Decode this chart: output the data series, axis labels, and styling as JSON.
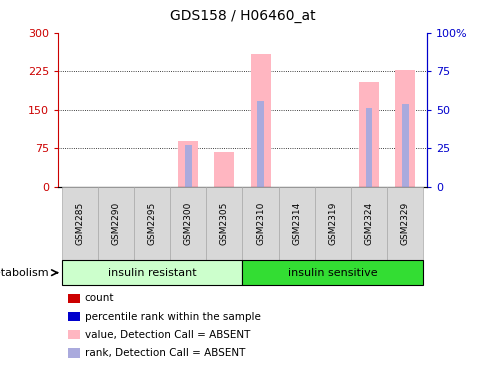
{
  "title": "GDS158 / H06460_at",
  "samples": [
    "GSM2285",
    "GSM2290",
    "GSM2295",
    "GSM2300",
    "GSM2305",
    "GSM2310",
    "GSM2314",
    "GSM2319",
    "GSM2324",
    "GSM2329"
  ],
  "pink_values": [
    0,
    0,
    0,
    90,
    68,
    258,
    0,
    0,
    205,
    228
  ],
  "blue_rank_values": [
    0,
    0,
    0,
    27,
    0,
    56,
    0,
    0,
    51,
    54
  ],
  "groups": [
    {
      "label": "insulin resistant",
      "start": 0,
      "end": 5,
      "color": "#ccffcc"
    },
    {
      "label": "insulin sensitive",
      "start": 5,
      "end": 10,
      "color": "#33dd33"
    }
  ],
  "ylim_left": [
    0,
    300
  ],
  "ylim_right": [
    0,
    100
  ],
  "yticks_left": [
    0,
    75,
    150,
    225,
    300
  ],
  "ytick_labels_left": [
    "0",
    "75",
    "150",
    "225",
    "300"
  ],
  "yticks_right": [
    0,
    25,
    50,
    75,
    100
  ],
  "ytick_labels_right": [
    "0",
    "25",
    "50",
    "75",
    "100%"
  ],
  "left_axis_color": "#cc0000",
  "right_axis_color": "#0000cc",
  "bar_width": 0.55,
  "pink_color": "#ffb6c1",
  "blue_color": "#aaaadd",
  "legend_items": [
    {
      "color": "#cc0000",
      "label": "count"
    },
    {
      "color": "#0000cc",
      "label": "percentile rank within the sample"
    },
    {
      "color": "#ffb6c1",
      "label": "value, Detection Call = ABSENT"
    },
    {
      "color": "#aaaadd",
      "label": "rank, Detection Call = ABSENT"
    }
  ],
  "metabolism_label": "metabolism",
  "xtick_box_color": "#d8d8d8",
  "xtick_box_edge": "#aaaaaa"
}
